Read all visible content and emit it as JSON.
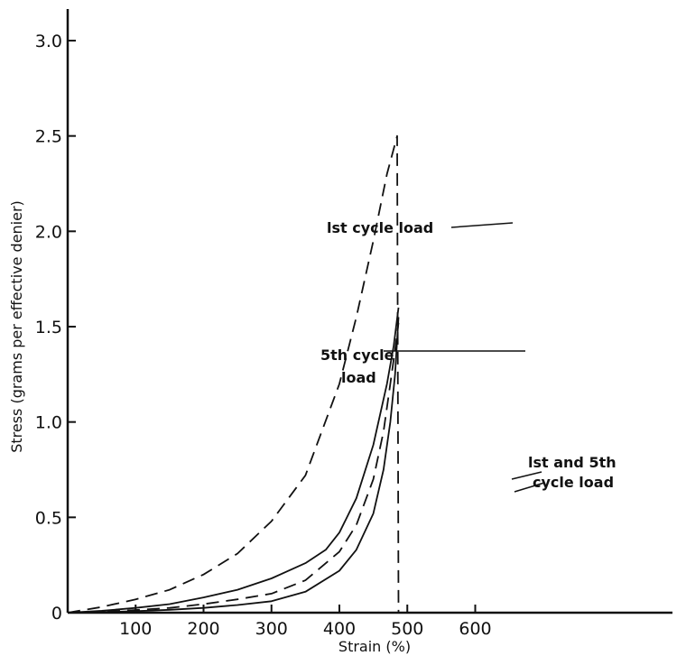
{
  "chart_data": {
    "type": "line",
    "title": "",
    "xlabel": "Strain (%)",
    "ylabel": "Stress (grams per effective denier)",
    "xlim": [
      0,
      650
    ],
    "ylim": [
      0,
      3.1
    ],
    "x_ticks": [
      100,
      200,
      300,
      400,
      500,
      600
    ],
    "x_tick_labels": [
      "100",
      "200",
      "300",
      "400",
      "500",
      "600"
    ],
    "y_ticks": [
      0,
      0.5,
      1.0,
      1.5,
      2.0,
      2.5,
      3.0
    ],
    "y_tick_labels": [
      "0",
      "0.5",
      "1.0",
      "1.5",
      "2.0",
      "2.5",
      "3.0"
    ],
    "grid": false,
    "series": [
      {
        "name": "lst cycle load",
        "style": "dashed",
        "x": [
          0,
          50,
          100,
          150,
          200,
          250,
          300,
          350,
          400,
          425,
          450,
          470,
          485,
          487
        ],
        "y": [
          0.0,
          0.03,
          0.07,
          0.12,
          0.2,
          0.31,
          0.48,
          0.72,
          1.2,
          1.55,
          1.95,
          2.3,
          2.5,
          0.0
        ]
      },
      {
        "name": "5th cycle load",
        "style": "solid",
        "x": [
          0,
          50,
          100,
          150,
          200,
          250,
          300,
          350,
          380,
          400,
          425,
          450,
          470,
          480,
          487
        ],
        "y": [
          0.0,
          0.01,
          0.025,
          0.045,
          0.08,
          0.12,
          0.18,
          0.26,
          0.33,
          0.42,
          0.6,
          0.88,
          1.2,
          1.4,
          1.6
        ]
      },
      {
        "name": "lst and 5th cycle load",
        "style": "solid",
        "x": [
          0,
          50,
          100,
          150,
          200,
          250,
          300,
          350,
          400,
          425,
          450,
          465,
          475,
          482,
          487
        ],
        "y": [
          0.0,
          0.003,
          0.008,
          0.015,
          0.025,
          0.04,
          0.06,
          0.11,
          0.22,
          0.33,
          0.52,
          0.75,
          1.0,
          1.25,
          1.55
        ]
      },
      {
        "name": "lst and 5th cycle load (dashed)",
        "style": "dashed",
        "x": [
          0,
          50,
          100,
          150,
          200,
          250,
          300,
          350,
          400,
          425,
          450,
          465,
          475,
          482,
          487
        ],
        "y": [
          0.0,
          0.005,
          0.014,
          0.025,
          0.045,
          0.07,
          0.1,
          0.17,
          0.32,
          0.46,
          0.7,
          0.95,
          1.2,
          1.38,
          1.52
        ]
      }
    ],
    "annotations": [
      {
        "lines": [
          "lst cycle load"
        ]
      },
      {
        "lines": [
          "5th cycle",
          "load"
        ]
      },
      {
        "lines": [
          "lst and 5th",
          "cycle load"
        ]
      }
    ]
  }
}
